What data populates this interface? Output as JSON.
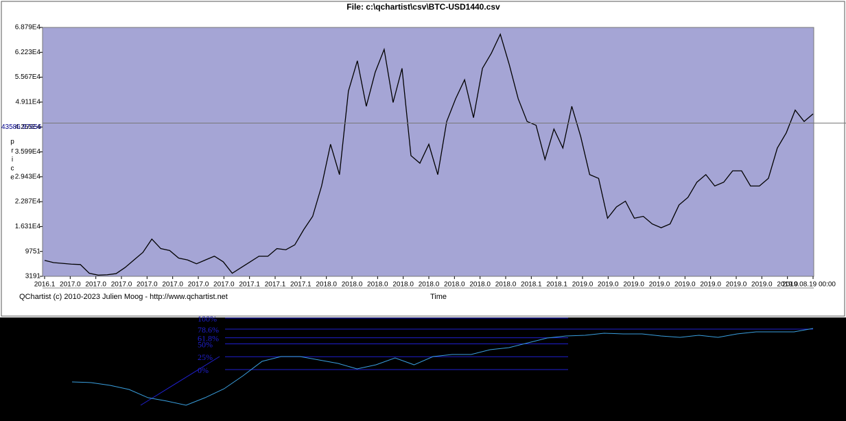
{
  "chart_data": [
    {
      "type": "line",
      "title": "File: c:\\qchartist\\csv\\BTC-USD1440.csv",
      "ylabel": "price",
      "xlabel": "Time",
      "footer": "QChartist (c) 2010-2023 Julien Moog - http://www.qchartist.net",
      "crosshair": 43586.97656,
      "color": "#000000",
      "ylim": [
        3191,
        68790
      ],
      "yticks": [
        3191,
        9751,
        {
          "value": 16310,
          "label": "1.631E4"
        },
        {
          "value": 22870,
          "label": "2.287E4"
        },
        {
          "value": 29430,
          "label": "2.943E4"
        },
        {
          "value": 35990,
          "label": "3.599E4"
        },
        {
          "value": 42550,
          "label": "4.255E4"
        },
        {
          "value": 49110,
          "label": "4.911E4"
        },
        {
          "value": 55670,
          "label": "5.567E4"
        },
        {
          "value": 62230,
          "label": "6.223E4"
        },
        {
          "value": 68790,
          "label": "6.879E4"
        }
      ],
      "xtick_labels": [
        "2016.1",
        "2017.0",
        "2017.0",
        "2017.0",
        "2017.0",
        "2017.0",
        "2017.0",
        "2017.0",
        "2017.1",
        "2017.1",
        "2017.1",
        "2018.0",
        "2018.0",
        "2018.0",
        "2018.0",
        "2018.0",
        "2018.0",
        "2018.0",
        "2018.0",
        "2018.1",
        "2018.1",
        "2019.0",
        "2019.0",
        "2019.0",
        "2019.0",
        "2019.0",
        "2019.0",
        "2019.0",
        "2019.0",
        "2019.0",
        "2019.08.19 00:00"
      ],
      "values": [
        7400,
        6800,
        6600,
        6400,
        6300,
        4000,
        3500,
        3600,
        3900,
        5500,
        7500,
        9500,
        13000,
        10500,
        10000,
        8000,
        7500,
        6500,
        7500,
        8500,
        7000,
        4000,
        5500,
        7000,
        8500,
        8500,
        10500,
        10200,
        11500,
        15500,
        19000,
        27000,
        38000,
        30000,
        52000,
        60000,
        48000,
        57000,
        63000,
        49000,
        58000,
        35000,
        33000,
        38000,
        30000,
        44000,
        50000,
        55000,
        45000,
        58000,
        62000,
        67000,
        59000,
        50000,
        44000,
        43000,
        34000,
        42000,
        37000,
        48000,
        40000,
        30000,
        29000,
        18500,
        21500,
        23000,
        18500,
        19000,
        17000,
        16000,
        17000,
        22000,
        24000,
        28000,
        30000,
        27000,
        28000,
        31000,
        31000,
        27000,
        27000,
        29000,
        37000,
        41000,
        47000,
        44000,
        46000
      ]
    },
    {
      "type": "fibonacci",
      "color": "#3aa0e0",
      "level_color": "#2020d0",
      "ylim": [
        -70,
        100
      ],
      "levels": [
        {
          "value": 100,
          "label": "100%"
        },
        {
          "value": 78.6,
          "label": "78.6%"
        },
        {
          "value": 61.8,
          "label": "61.8%"
        },
        {
          "value": 50,
          "label": "50%"
        },
        {
          "value": 25,
          "label": "25%"
        },
        {
          "value": 0,
          "label": "0%"
        }
      ],
      "values": [
        -24,
        -25.3,
        -30.7,
        -38.7,
        -54.7,
        -61.3,
        -69.3,
        -54.7,
        -37.3,
        -12,
        16,
        25.3,
        25.3,
        18.7,
        12,
        1.3,
        9.3,
        22.7,
        9.3,
        25.3,
        29.3,
        29.3,
        38.7,
        42.7,
        52,
        61.3,
        65.3,
        66.7,
        70.7,
        69.3,
        69.3,
        65.3,
        62.7,
        66.7,
        62.7,
        69.3,
        73.3,
        73.3,
        73.3,
        80
      ]
    }
  ]
}
